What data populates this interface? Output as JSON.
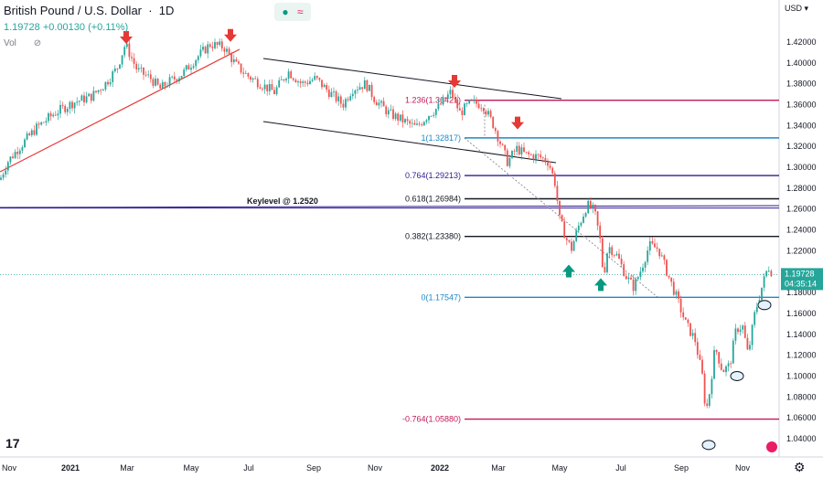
{
  "header": {
    "symbol": "British Pound / U.S. Dollar",
    "interval": "1D",
    "price": "1.19728",
    "change": "+0.00130 (+0.11%)",
    "vol_label": "Vol"
  },
  "toolbar": {
    "currency": "USD",
    "eyes_icon": "eye-icon",
    "wave_icon": "wave-icon"
  },
  "colors": {
    "up": "#26a69a",
    "down": "#ef5350",
    "fib_red": "#c2185b",
    "fib_blue": "#2196f3",
    "purple": "#311b92",
    "black": "#131722",
    "trend": "#e53935"
  },
  "chart_data": {
    "type": "candlestick",
    "x_ticks": [
      "Nov",
      "2021",
      "Mar",
      "May",
      "Jul",
      "Sep",
      "Nov",
      "2022",
      "Mar",
      "May",
      "Jul",
      "Sep",
      "Nov"
    ],
    "y_ticks": [
      "1.42000",
      "1.40000",
      "1.38000",
      "1.36000",
      "1.34000",
      "1.32000",
      "1.30000",
      "1.28000",
      "1.26000",
      "1.24000",
      "1.22000",
      "1.20000",
      "1.18000",
      "1.16000",
      "1.14000",
      "1.12000",
      "1.10000",
      "1.08000",
      "1.06000",
      "1.04000"
    ],
    "ylim": [
      1.028,
      1.435
    ],
    "price_path": [
      [
        0,
        1.288
      ],
      [
        8,
        1.305
      ],
      [
        20,
        1.318
      ],
      [
        40,
        1.338
      ],
      [
        60,
        1.352
      ],
      [
        80,
        1.362
      ],
      [
        100,
        1.368
      ],
      [
        115,
        1.38
      ],
      [
        128,
        1.395
      ],
      [
        137,
        1.418
      ],
      [
        150,
        1.393
      ],
      [
        165,
        1.385
      ],
      [
        175,
        1.375
      ],
      [
        185,
        1.382
      ],
      [
        200,
        1.39
      ],
      [
        215,
        1.405
      ],
      [
        230,
        1.418
      ],
      [
        245,
        1.415
      ],
      [
        258,
        1.398
      ],
      [
        270,
        1.388
      ],
      [
        285,
        1.38
      ],
      [
        300,
        1.372
      ],
      [
        315,
        1.392
      ],
      [
        330,
        1.38
      ],
      [
        345,
        1.385
      ],
      [
        360,
        1.372
      ],
      [
        375,
        1.36
      ],
      [
        385,
        1.375
      ],
      [
        400,
        1.38
      ],
      [
        410,
        1.365
      ],
      [
        425,
        1.352
      ],
      [
        440,
        1.345
      ],
      [
        455,
        1.338
      ],
      [
        468,
        1.35
      ],
      [
        480,
        1.358
      ],
      [
        493,
        1.372
      ],
      [
        503,
        1.352
      ],
      [
        515,
        1.362
      ],
      [
        528,
        1.36
      ],
      [
        540,
        1.34
      ],
      [
        555,
        1.305
      ],
      [
        565,
        1.318
      ],
      [
        575,
        1.312
      ],
      [
        590,
        1.31
      ],
      [
        600,
        1.305
      ],
      [
        607,
        1.285
      ],
      [
        612,
        1.25
      ],
      [
        620,
        1.23
      ],
      [
        625,
        1.222
      ],
      [
        632,
        1.242
      ],
      [
        642,
        1.264
      ],
      [
        650,
        1.258
      ],
      [
        656,
        1.232
      ],
      [
        660,
        1.195
      ],
      [
        665,
        1.225
      ],
      [
        675,
        1.215
      ],
      [
        685,
        1.195
      ],
      [
        693,
        1.185
      ],
      [
        700,
        1.2
      ],
      [
        710,
        1.225
      ],
      [
        720,
        1.222
      ],
      [
        730,
        1.198
      ],
      [
        740,
        1.175
      ],
      [
        750,
        1.15
      ],
      [
        760,
        1.135
      ],
      [
        768,
        1.1
      ],
      [
        772,
        1.065
      ],
      [
        776,
        1.085
      ],
      [
        782,
        1.128
      ],
      [
        790,
        1.105
      ],
      [
        798,
        1.11
      ],
      [
        805,
        1.145
      ],
      [
        812,
        1.148
      ],
      [
        818,
        1.12
      ],
      [
        825,
        1.158
      ],
      [
        832,
        1.182
      ],
      [
        840,
        1.205
      ],
      [
        846,
        1.197
      ]
    ],
    "fib_levels": [
      {
        "label": "1.236(1.36421)",
        "value": 1.36421,
        "color": "#c2185b",
        "label_color": "#c2185b"
      },
      {
        "label": "1(1.32817)",
        "value": 1.32817,
        "color": "#1e88c8",
        "label_color": "#1e88c8"
      },
      {
        "label": "0.764(1.29213)",
        "value": 1.29213,
        "color": "#311b92",
        "label_color": "#311b92"
      },
      {
        "label": "0.618(1.26984)",
        "value": 1.26984,
        "color": "#131722",
        "label_color": "#131722"
      },
      {
        "label": "0.382(1.23380)",
        "value": 1.2338,
        "color": "#131722",
        "label_color": "#131722"
      },
      {
        "label": "0(1.17547)",
        "value": 1.17547,
        "color": "#1e88c8",
        "label_color": "#1e88c8"
      },
      {
        "label": "-0.764(1.05880)",
        "value": 1.0588,
        "color": "#c2185b",
        "label_color": "#c2185b"
      }
    ],
    "keylevel": {
      "label": "Keylevel @ 1.2520",
      "upper": 1.261,
      "lower": 1.248
    },
    "last_price": {
      "value": "1.19728",
      "countdown": "04:35:14"
    },
    "annotations": {
      "down_arrows": [
        [
          138,
          1.42
        ],
        [
          252,
          1.422
        ],
        [
          497,
          1.378
        ],
        [
          566,
          1.338
        ]
      ],
      "up_arrows": [
        [
          622,
          1.205
        ],
        [
          657,
          1.192
        ]
      ],
      "circles": [
        [
          836,
          1.168
        ],
        [
          806,
          1.1
        ],
        [
          775,
          1.034
        ]
      ]
    }
  }
}
